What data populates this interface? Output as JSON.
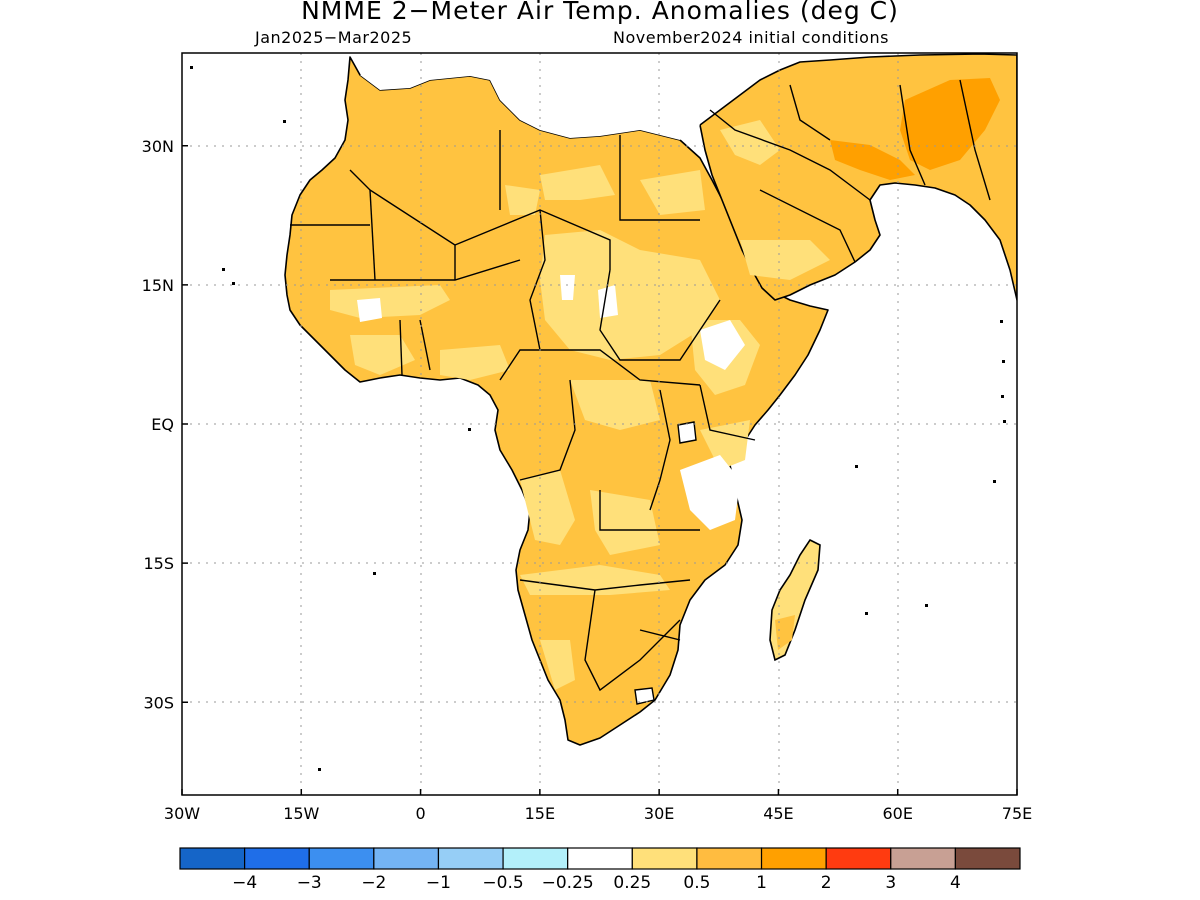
{
  "title": "NMME 2−Meter Air Temp. Anomalies (deg C)",
  "subtitle_left": "Jan2025−Mar2025",
  "subtitle_right": "November2024 initial conditions",
  "map": {
    "lon_range": [
      -30,
      75
    ],
    "lat_range": [
      -40,
      40
    ],
    "x_ticks": [
      "30W",
      "15W",
      "0",
      "15E",
      "30E",
      "45E",
      "60E",
      "75E"
    ],
    "x_tick_values": [
      -30,
      -15,
      0,
      15,
      30,
      45,
      60,
      75
    ],
    "y_ticks": [
      "30N",
      "15N",
      "EQ",
      "15S",
      "30S"
    ],
    "y_tick_values": [
      30,
      15,
      0,
      -15,
      -30
    ],
    "grid": "dotted",
    "land_color": "#ffc340",
    "ocean_color": "#ffffff"
  },
  "colorbar": {
    "colors": [
      "#1565c8",
      "#1f6ee8",
      "#3c8ff0",
      "#74b4f4",
      "#96cef6",
      "#b3f0fa",
      "#ffffff",
      "#ffe07a",
      "#ffbc40",
      "#ffa000",
      "#ff3b10",
      "#c8a094",
      "#7a4a3c"
    ],
    "labels": [
      "−4",
      "−3",
      "−2",
      "−1",
      "−0.5",
      "−0.25",
      "0.25",
      "0.5",
      "1",
      "2",
      "3",
      "4"
    ]
  }
}
